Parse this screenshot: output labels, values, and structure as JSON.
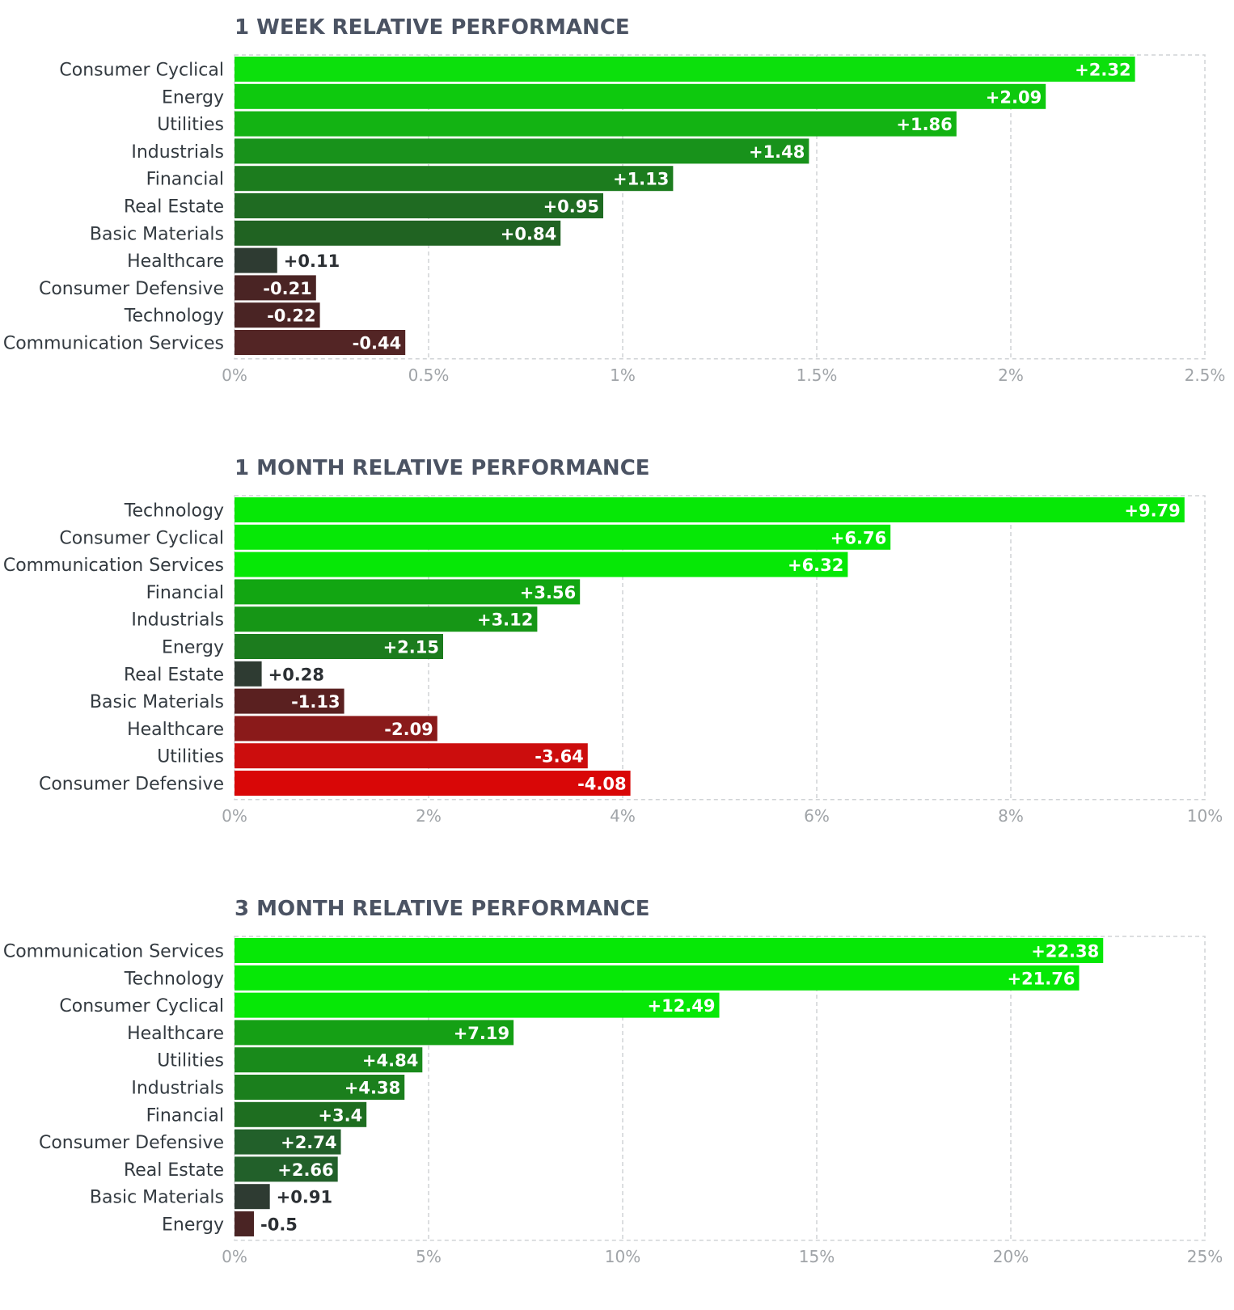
{
  "chart_data": [
    {
      "type": "bar",
      "orientation": "horizontal",
      "title": "1 WEEK RELATIVE PERFORMANCE",
      "categories": [
        "Consumer Cyclical",
        "Energy",
        "Utilities",
        "Industrials",
        "Financial",
        "Real Estate",
        "Basic Materials",
        "Healthcare",
        "Consumer Defensive",
        "Technology",
        "Communication Services"
      ],
      "values": [
        2.32,
        2.09,
        1.86,
        1.48,
        1.13,
        0.95,
        0.84,
        0.11,
        -0.21,
        -0.22,
        -0.44
      ],
      "value_labels": [
        "+2.32",
        "+2.09",
        "+1.86",
        "+1.48",
        "+1.13",
        "+0.95",
        "+0.84",
        "+0.11",
        "-0.21",
        "-0.22",
        "-0.44"
      ],
      "bar_colors": [
        "#0ce00c",
        "#0ec90e",
        "#13b313",
        "#18921b",
        "#1c7c1e",
        "#1f6b22",
        "#206322",
        "#2e3b32",
        "#4a2424",
        "#4a2424",
        "#532525"
      ],
      "xlim": [
        0,
        2.5
      ],
      "xticks": [
        "0%",
        "0.5%",
        "1%",
        "1.5%",
        "2%",
        "2.5%"
      ],
      "grid": true
    },
    {
      "type": "bar",
      "orientation": "horizontal",
      "title": "1 MONTH RELATIVE PERFORMANCE",
      "categories": [
        "Technology",
        "Consumer Cyclical",
        "Communication Services",
        "Financial",
        "Industrials",
        "Energy",
        "Real Estate",
        "Basic Materials",
        "Healthcare",
        "Utilities",
        "Consumer Defensive"
      ],
      "values": [
        9.79,
        6.76,
        6.32,
        3.56,
        3.12,
        2.15,
        0.28,
        -1.13,
        -2.09,
        -3.64,
        -4.08
      ],
      "value_labels": [
        "+9.79",
        "+6.76",
        "+6.32",
        "+3.56",
        "+3.12",
        "+2.15",
        "+0.28",
        "-1.13",
        "-2.09",
        "-3.64",
        "-4.08"
      ],
      "bar_colors": [
        "#06e806",
        "#06e806",
        "#06e806",
        "#12a612",
        "#169616",
        "#1c7c1e",
        "#2e3b32",
        "#5a2020",
        "#8a1a1a",
        "#cc0d0d",
        "#d90707"
      ],
      "xlim": [
        0,
        10
      ],
      "xticks": [
        "0%",
        "2%",
        "4%",
        "6%",
        "8%",
        "10%"
      ],
      "grid": true
    },
    {
      "type": "bar",
      "orientation": "horizontal",
      "title": "3 MONTH RELATIVE PERFORMANCE",
      "categories": [
        "Communication Services",
        "Technology",
        "Consumer Cyclical",
        "Healthcare",
        "Utilities",
        "Industrials",
        "Financial",
        "Consumer Defensive",
        "Real Estate",
        "Basic Materials",
        "Energy"
      ],
      "values": [
        22.38,
        21.76,
        12.49,
        7.19,
        4.84,
        4.38,
        3.4,
        2.74,
        2.66,
        0.91,
        -0.5
      ],
      "value_labels": [
        "+22.38",
        "+21.76",
        "+12.49",
        "+7.19",
        "+4.84",
        "+4.38",
        "+3.4",
        "+2.74",
        "+2.66",
        "+0.91",
        "-0.5"
      ],
      "bar_colors": [
        "#06e806",
        "#06e806",
        "#06e806",
        "#15a015",
        "#198a1b",
        "#1b7f1d",
        "#1e6e20",
        "#22602a",
        "#22602a",
        "#2e3b32",
        "#4a2424"
      ],
      "xlim": [
        0,
        25
      ],
      "xticks": [
        "0%",
        "5%",
        "10%",
        "15%",
        "20%",
        "25%"
      ],
      "grid": true
    }
  ]
}
